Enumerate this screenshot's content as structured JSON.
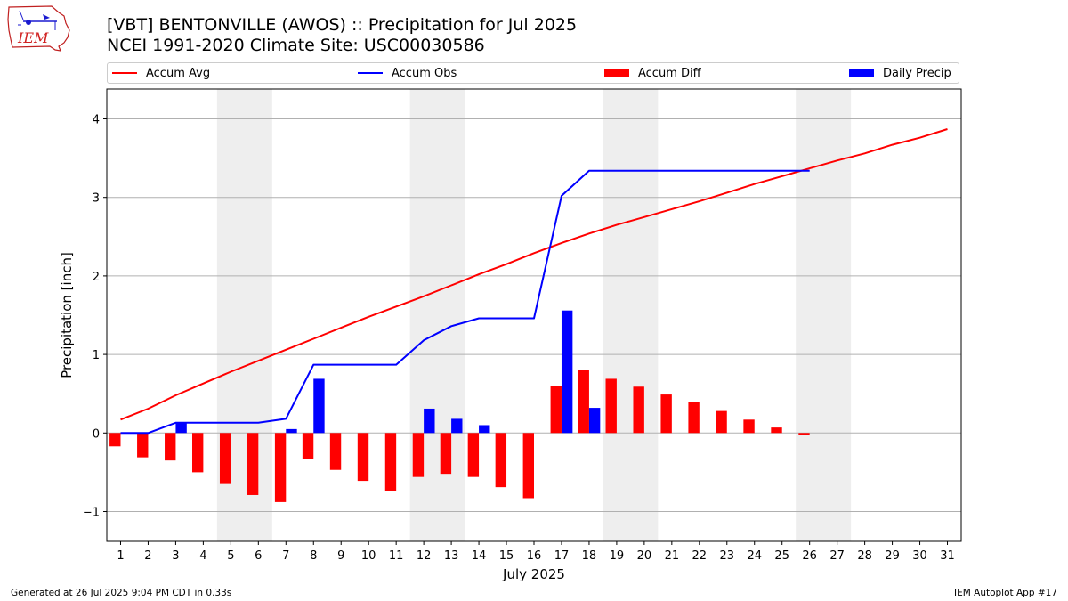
{
  "header": {
    "title_line1": "[VBT] BENTONVILLE (AWOS) :: Precipitation for Jul 2025",
    "title_line2": "NCEI 1991-2020 Climate Site: USC00030586",
    "logo_text": "IEM"
  },
  "legend": {
    "accum_avg": "Accum Avg",
    "accum_obs": "Accum Obs",
    "accum_diff": "Accum Diff",
    "daily_precip": "Daily Precip",
    "placement": "top, above plot"
  },
  "footer": {
    "left": "Generated at 26 Jul 2025 9:04 PM CDT in 0.33s",
    "right": "IEM Autoplot App #17"
  },
  "colors": {
    "accum_avg": "#ff0000",
    "accum_obs": "#0000ff",
    "accum_diff": "#ff0000",
    "daily_precip": "#0000ff",
    "weekend_shade": "#eeeeee",
    "grid": "#b0b0b0"
  },
  "chart_data": {
    "type": "bar",
    "xlabel": "July 2025",
    "ylabel": "Precipitation [inch]",
    "xlim": [
      0.5,
      31.5
    ],
    "ylim": [
      -1.38,
      4.38
    ],
    "yticks": [
      -1,
      0,
      1,
      2,
      3,
      4
    ],
    "ytick_labels": [
      "−1",
      "0",
      "1",
      "2",
      "3",
      "4"
    ],
    "grid": "horizontal",
    "days": [
      1,
      2,
      3,
      4,
      5,
      6,
      7,
      8,
      9,
      10,
      11,
      12,
      13,
      14,
      15,
      16,
      17,
      18,
      19,
      20,
      21,
      22,
      23,
      24,
      25,
      26,
      27,
      28,
      29,
      30,
      31
    ],
    "weekends": [
      [
        5,
        6
      ],
      [
        12,
        13
      ],
      [
        19,
        20
      ],
      [
        26,
        27
      ]
    ],
    "series": [
      {
        "name": "Accum Avg",
        "kind": "line",
        "x": [
          1,
          2,
          3,
          4,
          5,
          6,
          7,
          8,
          9,
          10,
          11,
          12,
          13,
          14,
          15,
          16,
          17,
          18,
          19,
          20,
          21,
          22,
          23,
          24,
          25,
          26,
          27,
          28,
          29,
          30,
          31
        ],
        "values": [
          0.17,
          0.31,
          0.48,
          0.63,
          0.78,
          0.92,
          1.06,
          1.2,
          1.34,
          1.48,
          1.61,
          1.74,
          1.88,
          2.02,
          2.15,
          2.29,
          2.42,
          2.54,
          2.65,
          2.75,
          2.85,
          2.95,
          3.06,
          3.17,
          3.27,
          3.37,
          3.47,
          3.56,
          3.67,
          3.76,
          3.87
        ]
      },
      {
        "name": "Accum Obs",
        "kind": "line",
        "x": [
          1,
          2,
          3,
          4,
          5,
          6,
          7,
          8,
          9,
          10,
          11,
          12,
          13,
          14,
          15,
          16,
          17,
          18,
          19,
          20,
          21,
          22,
          23,
          24,
          25,
          26
        ],
        "values": [
          0.0,
          0.0,
          0.13,
          0.13,
          0.13,
          0.13,
          0.18,
          0.87,
          0.87,
          0.87,
          0.87,
          1.18,
          1.36,
          1.46,
          1.46,
          1.46,
          3.02,
          3.34,
          3.34,
          3.34,
          3.34,
          3.34,
          3.34,
          3.34,
          3.34,
          3.34
        ]
      },
      {
        "name": "Accum Diff",
        "kind": "bar",
        "x": [
          1,
          2,
          3,
          4,
          5,
          6,
          7,
          8,
          9,
          10,
          11,
          12,
          13,
          14,
          15,
          16,
          17,
          18,
          19,
          20,
          21,
          22,
          23,
          24,
          25,
          26
        ],
        "values": [
          -0.17,
          -0.31,
          -0.35,
          -0.5,
          -0.65,
          -0.79,
          -0.88,
          -0.33,
          -0.47,
          -0.61,
          -0.74,
          -0.56,
          -0.52,
          -0.56,
          -0.69,
          -0.83,
          0.6,
          0.8,
          0.69,
          0.59,
          0.49,
          0.39,
          0.28,
          0.17,
          0.07,
          -0.03
        ]
      },
      {
        "name": "Daily Precip",
        "kind": "bar",
        "x": [
          3,
          7,
          8,
          12,
          13,
          14,
          17,
          18
        ],
        "values": [
          0.13,
          0.05,
          0.69,
          0.31,
          0.18,
          0.1,
          1.56,
          0.32
        ]
      }
    ]
  }
}
